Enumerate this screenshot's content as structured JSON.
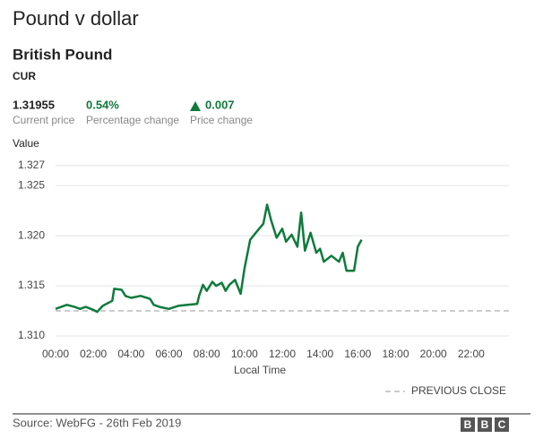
{
  "header": {
    "title": "Pound v dollar",
    "subtitle": "British Pound",
    "code": "CUR"
  },
  "stats": [
    {
      "value": "1.31955",
      "label": "Current price"
    },
    {
      "value": "0.54%",
      "label": "Percentage change"
    },
    {
      "value": "0.007",
      "label": "Price change"
    }
  ],
  "chart_data": {
    "type": "line",
    "y_label": "Value",
    "x_label": "Local Time",
    "x": [
      0,
      0.3,
      0.6,
      1.0,
      1.3,
      1.6,
      2.0,
      2.2,
      2.5,
      3.0,
      3.1,
      3.5,
      3.7,
      4.0,
      4.5,
      5.0,
      5.2,
      5.5,
      6.0,
      6.5,
      7.0,
      7.5,
      7.6,
      7.8,
      8.0,
      8.3,
      8.5,
      8.8,
      9.0,
      9.2,
      9.5,
      9.8,
      10.0,
      10.3,
      10.6,
      11.0,
      11.2,
      11.4,
      11.7,
      12.0,
      12.2,
      12.5,
      12.8,
      13.0,
      13.2,
      13.5,
      13.8,
      14.0,
      14.2,
      14.6,
      15.0,
      15.2,
      15.4,
      15.8,
      16.0,
      16.2
    ],
    "series": [
      {
        "name": "British Pound",
        "color": "#0f7a3c",
        "values": [
          1.3127,
          1.3129,
          1.3131,
          1.3129,
          1.3127,
          1.3129,
          1.3126,
          1.3124,
          1.313,
          1.3135,
          1.3147,
          1.3146,
          1.314,
          1.3138,
          1.314,
          1.3137,
          1.3131,
          1.3129,
          1.3127,
          1.313,
          1.3131,
          1.3132,
          1.314,
          1.3151,
          1.3145,
          1.3154,
          1.315,
          1.3153,
          1.3145,
          1.3151,
          1.3156,
          1.3142,
          1.3167,
          1.3196,
          1.3203,
          1.3212,
          1.3231,
          1.3216,
          1.3198,
          1.3207,
          1.3194,
          1.3201,
          1.3189,
          1.3223,
          1.3185,
          1.3203,
          1.3183,
          1.3187,
          1.3174,
          1.318,
          1.3174,
          1.3183,
          1.3165,
          1.3165,
          1.3189,
          1.3196
        ]
      }
    ],
    "reference_line": {
      "name": "PREVIOUS CLOSE",
      "value": 1.3125,
      "color": "#cccccc"
    },
    "xlim": [
      0,
      24
    ],
    "xticks": [
      {
        "value": 0,
        "label": "00:00"
      },
      {
        "value": 2,
        "label": "02:00"
      },
      {
        "value": 4,
        "label": "04:00"
      },
      {
        "value": 6,
        "label": "06:00"
      },
      {
        "value": 8,
        "label": "08:00"
      },
      {
        "value": 10,
        "label": "10:00"
      },
      {
        "value": 12,
        "label": "12:00"
      },
      {
        "value": 14,
        "label": "14:00"
      },
      {
        "value": 16,
        "label": "16:00"
      },
      {
        "value": 18,
        "label": "18:00"
      },
      {
        "value": 20,
        "label": "20:00"
      },
      {
        "value": 22,
        "label": "22:00"
      }
    ],
    "ylim": [
      1.31,
      1.3277
    ],
    "yticks": [
      {
        "value": 1.31,
        "label": "1.310"
      },
      1.315,
      {
        "value": 1.32,
        "label": "1.320"
      },
      1.325,
      1.327
    ],
    "grid": true
  },
  "footer": {
    "source": "Source: WebFG - 26th Feb 2019",
    "logo": [
      "B",
      "B",
      "C"
    ]
  }
}
